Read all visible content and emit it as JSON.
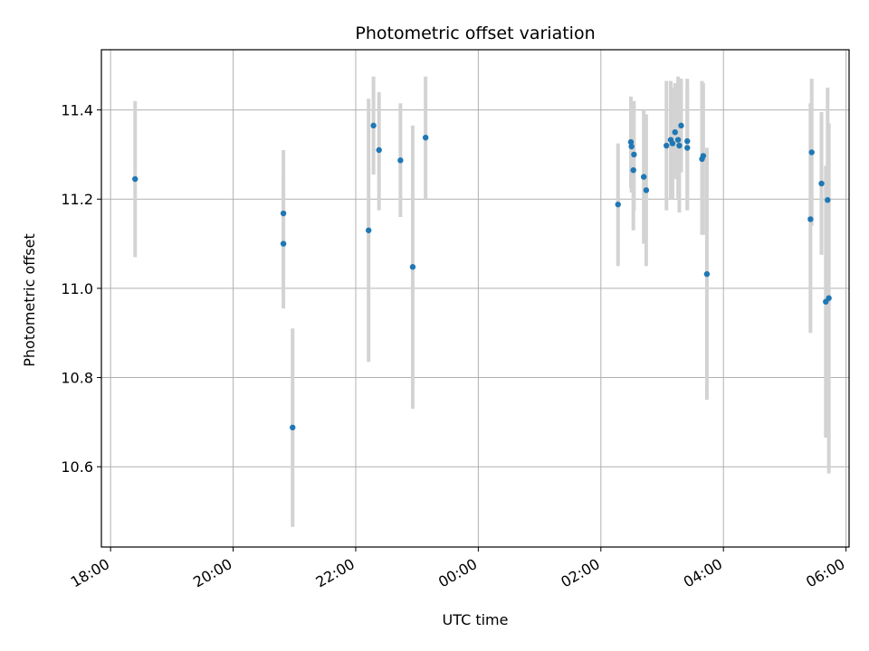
{
  "chart_data": {
    "type": "scatter",
    "title": "Photometric offset variation",
    "xlabel": "UTC time",
    "ylabel": "Photometric offset",
    "x_unit": "hours",
    "xlim": [
      17.85,
      30.05
    ],
    "ylim": [
      10.42,
      11.535
    ],
    "grid": true,
    "colors": {
      "point": "#1f77b4",
      "errorbar": "#d3d3d3",
      "grid": "#b0b0b0"
    },
    "xticks": [
      {
        "value": 18,
        "label": "18:00"
      },
      {
        "value": 20,
        "label": "20:00"
      },
      {
        "value": 22,
        "label": "22:00"
      },
      {
        "value": 24,
        "label": "00:00"
      },
      {
        "value": 26,
        "label": "02:00"
      },
      {
        "value": 28,
        "label": "04:00"
      },
      {
        "value": 30,
        "label": "06:00"
      }
    ],
    "yticks": [
      {
        "value": 10.6,
        "label": "10.6"
      },
      {
        "value": 10.8,
        "label": "10.8"
      },
      {
        "value": 11.0,
        "label": "11.0"
      },
      {
        "value": 11.2,
        "label": "11.2"
      },
      {
        "value": 11.4,
        "label": "11.4"
      }
    ],
    "points": [
      {
        "x": 18.4,
        "y": 11.245,
        "lo": 11.07,
        "hi": 11.42
      },
      {
        "x": 20.82,
        "y": 11.168,
        "lo": 11.02,
        "hi": 11.31
      },
      {
        "x": 20.82,
        "y": 11.1,
        "lo": 10.955,
        "hi": 11.25
      },
      {
        "x": 20.97,
        "y": 10.688,
        "lo": 10.465,
        "hi": 10.91
      },
      {
        "x": 22.21,
        "y": 11.13,
        "lo": 10.835,
        "hi": 11.425
      },
      {
        "x": 22.29,
        "y": 11.365,
        "lo": 11.255,
        "hi": 11.475
      },
      {
        "x": 22.38,
        "y": 11.31,
        "lo": 11.175,
        "hi": 11.44
      },
      {
        "x": 22.73,
        "y": 11.287,
        "lo": 11.16,
        "hi": 11.415
      },
      {
        "x": 22.93,
        "y": 11.048,
        "lo": 10.73,
        "hi": 11.365
      },
      {
        "x": 23.14,
        "y": 11.338,
        "lo": 11.2,
        "hi": 11.475
      },
      {
        "x": 26.28,
        "y": 11.188,
        "lo": 11.05,
        "hi": 11.325
      },
      {
        "x": 26.49,
        "y": 11.328,
        "lo": 11.225,
        "hi": 11.43
      },
      {
        "x": 26.5,
        "y": 11.318,
        "lo": 11.215,
        "hi": 11.42
      },
      {
        "x": 26.53,
        "y": 11.265,
        "lo": 11.13,
        "hi": 11.4
      },
      {
        "x": 26.54,
        "y": 11.3,
        "lo": 11.175,
        "hi": 11.42
      },
      {
        "x": 26.7,
        "y": 11.25,
        "lo": 11.1,
        "hi": 11.4
      },
      {
        "x": 26.74,
        "y": 11.22,
        "lo": 11.05,
        "hi": 11.39
      },
      {
        "x": 27.07,
        "y": 11.32,
        "lo": 11.175,
        "hi": 11.465
      },
      {
        "x": 27.14,
        "y": 11.333,
        "lo": 11.2,
        "hi": 11.465
      },
      {
        "x": 27.17,
        "y": 11.325,
        "lo": 11.2,
        "hi": 11.45
      },
      {
        "x": 27.21,
        "y": 11.35,
        "lo": 11.245,
        "hi": 11.46
      },
      {
        "x": 27.26,
        "y": 11.333,
        "lo": 11.2,
        "hi": 11.475
      },
      {
        "x": 27.28,
        "y": 11.32,
        "lo": 11.17,
        "hi": 11.47
      },
      {
        "x": 27.31,
        "y": 11.365,
        "lo": 11.26,
        "hi": 11.47
      },
      {
        "x": 27.41,
        "y": 11.33,
        "lo": 11.19,
        "hi": 11.47
      },
      {
        "x": 27.41,
        "y": 11.315,
        "lo": 11.175,
        "hi": 11.45
      },
      {
        "x": 27.65,
        "y": 11.29,
        "lo": 11.12,
        "hi": 11.465
      },
      {
        "x": 27.67,
        "y": 11.297,
        "lo": 11.12,
        "hi": 11.46
      },
      {
        "x": 27.73,
        "y": 11.032,
        "lo": 10.75,
        "hi": 11.315
      },
      {
        "x": 29.42,
        "y": 11.155,
        "lo": 10.9,
        "hi": 11.415
      },
      {
        "x": 29.44,
        "y": 11.305,
        "lo": 11.14,
        "hi": 11.47
      },
      {
        "x": 29.6,
        "y": 11.235,
        "lo": 11.075,
        "hi": 11.395
      },
      {
        "x": 29.67,
        "y": 10.97,
        "lo": 10.665,
        "hi": 11.275
      },
      {
        "x": 29.7,
        "y": 11.198,
        "lo": 10.945,
        "hi": 11.45
      },
      {
        "x": 29.72,
        "y": 10.978,
        "lo": 10.585,
        "hi": 11.37
      }
    ]
  }
}
